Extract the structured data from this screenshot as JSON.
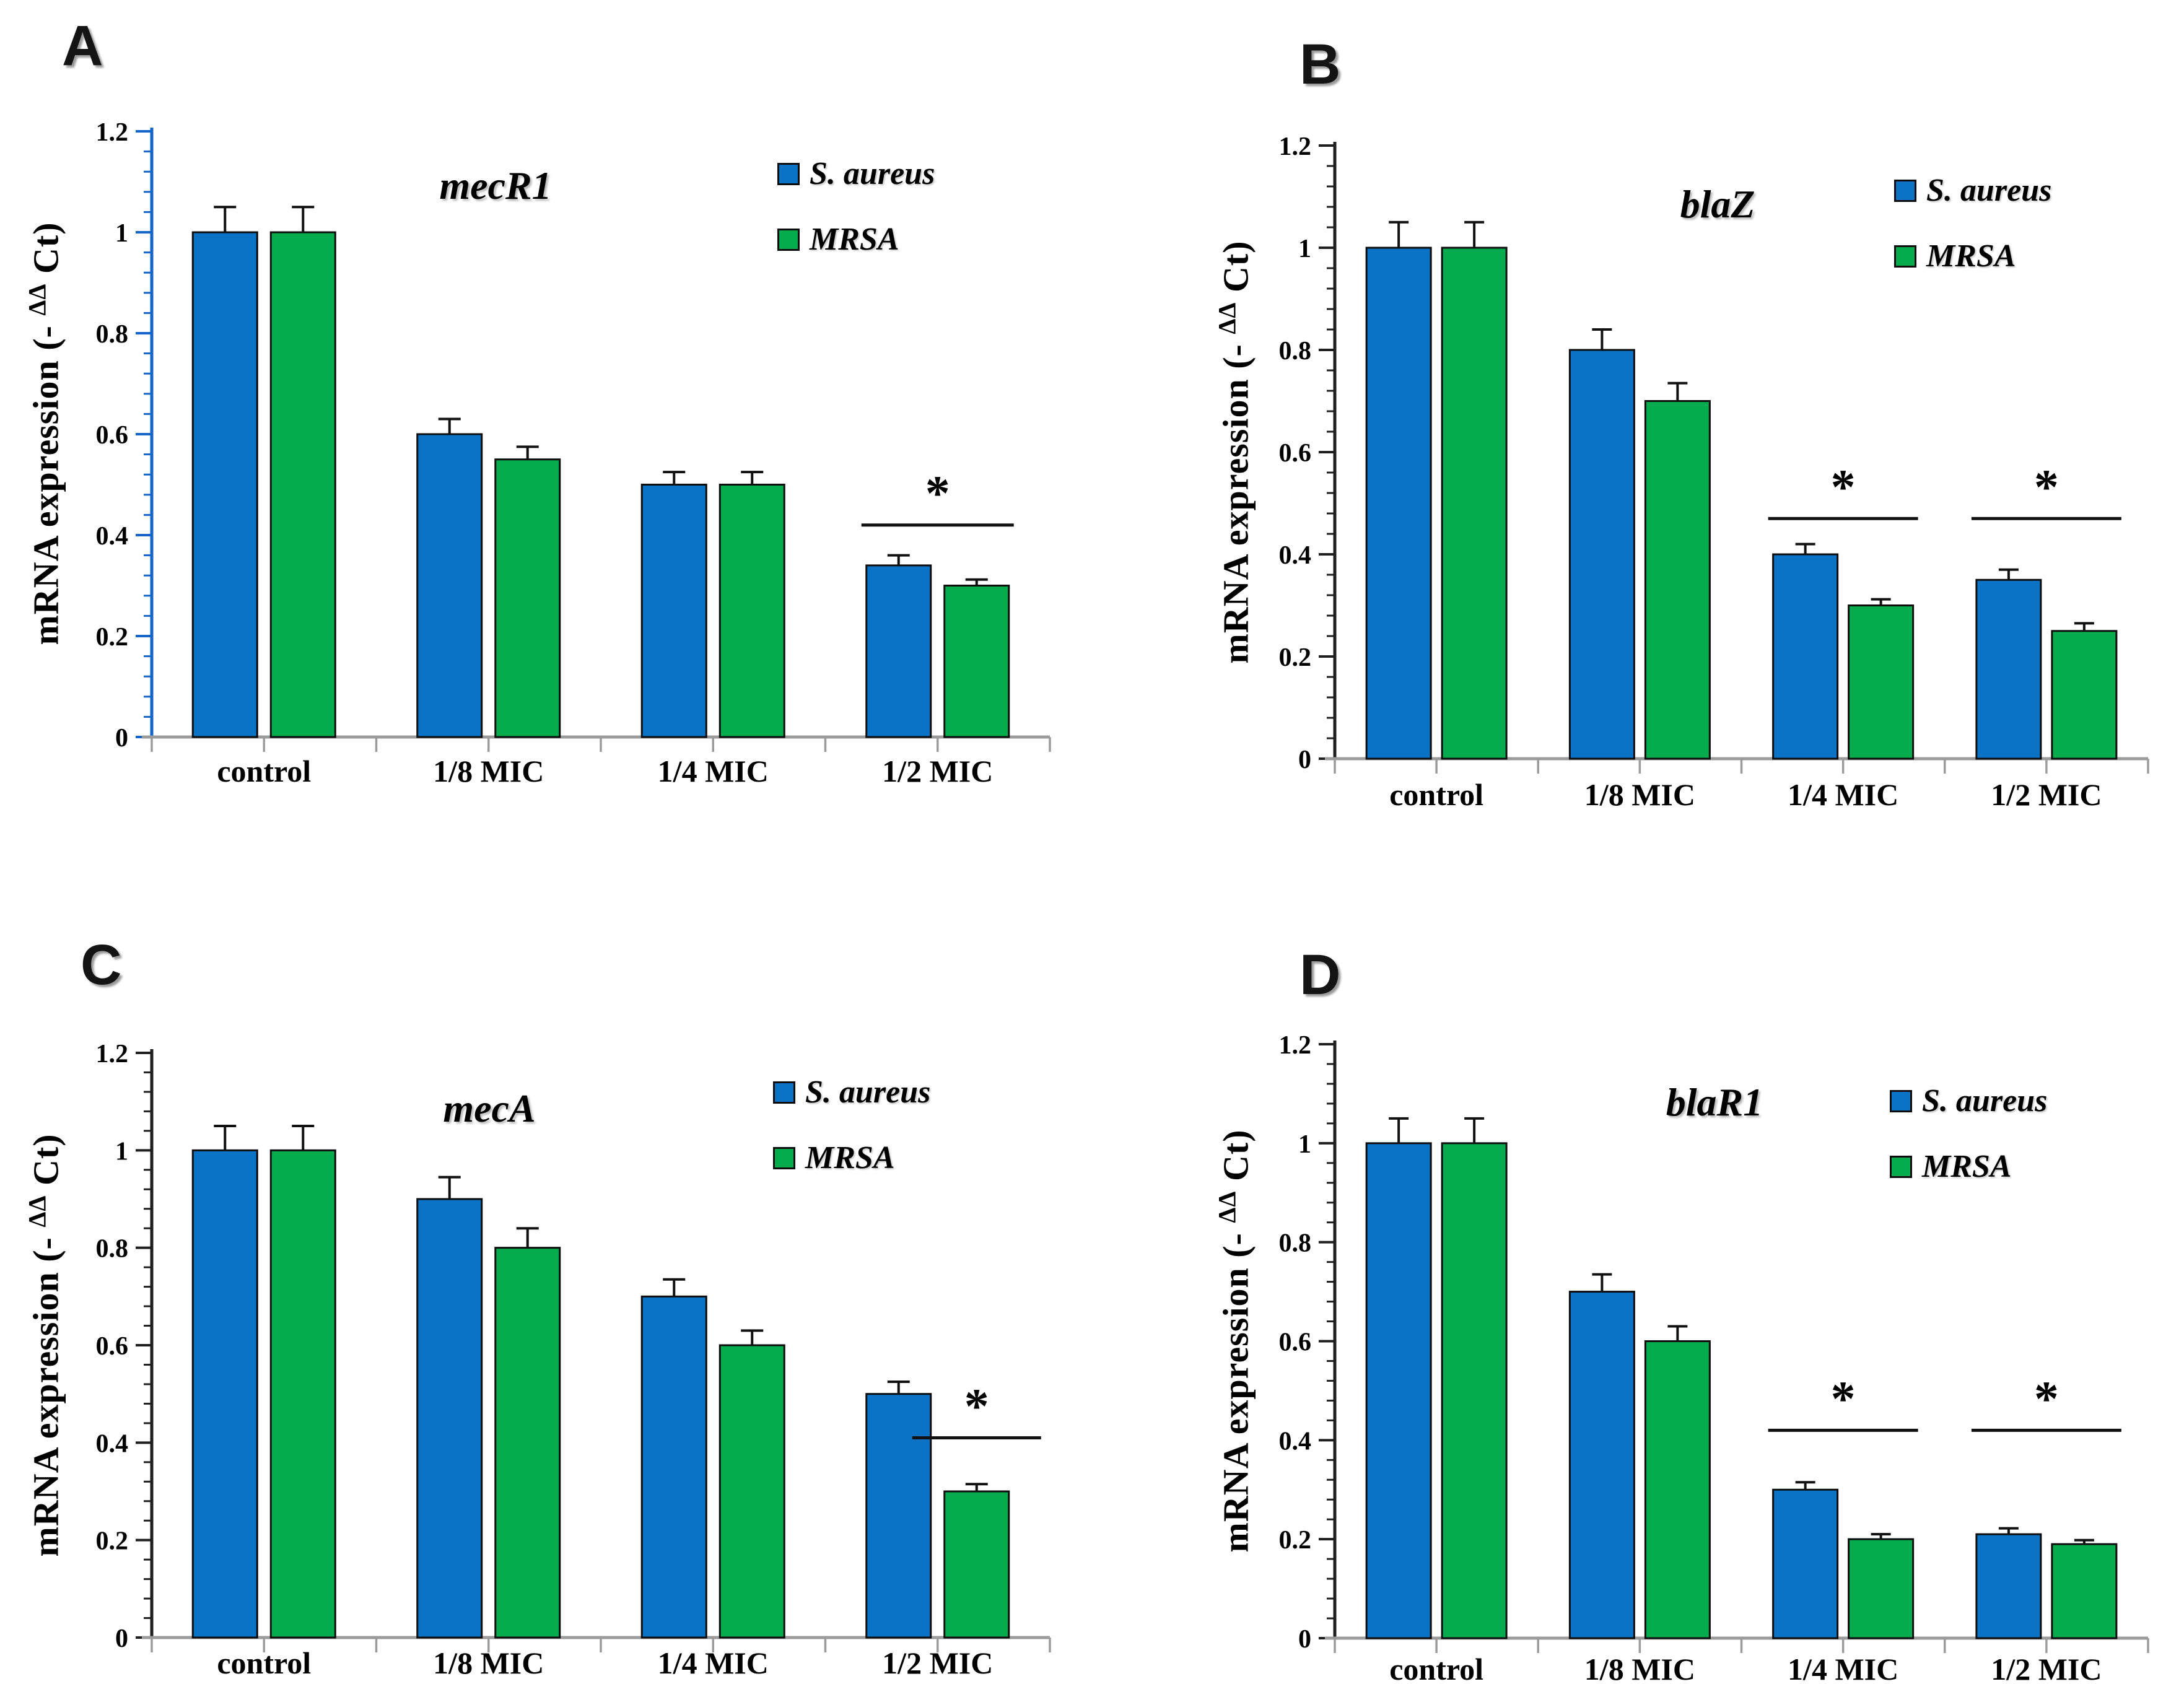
{
  "figure": {
    "background": "#ffffff",
    "colors": {
      "s_aureus_fill": "#0b73c6",
      "mrsa_fill": "#05ab4c",
      "bar_border": "#0d0d0d",
      "error_bar": "#111111",
      "axis_blue": "#1565c8",
      "axis_dark": "#1f1f1f",
      "baseline_gray": "#9b9b9b",
      "sig_line": "#111111"
    },
    "legend": {
      "position": "top-right",
      "items": [
        {
          "label": "S. aureus",
          "series": "s_aureus"
        },
        {
          "label": "MRSA",
          "series": "mrsa"
        }
      ]
    },
    "y_axis": {
      "title_prefix": "mRNA expression (- ",
      "title_sup": "ΔΔ",
      "title_suffix": " Ct)",
      "min": 0,
      "max": 1.2,
      "major_step": 0.2,
      "minor_divisions": 5,
      "tick_labels": [
        "0",
        "0.2",
        "0.4",
        "0.6",
        "0.8",
        "1",
        "1.2"
      ]
    }
  },
  "chart_data": [
    {
      "panel": "A",
      "type": "bar",
      "title": "mecR1",
      "ylabel": "mRNA expression (- ΔΔ Ct)",
      "ylim": [
        0,
        1.2
      ],
      "grid": false,
      "categories": [
        "control",
        "1/8 MIC",
        "1/4 MIC",
        "1/2 MIC"
      ],
      "series": [
        {
          "name": "S. aureus",
          "values": [
            1.0,
            0.6,
            0.5,
            0.34
          ],
          "errors": [
            0.05,
            0.03,
            0.025,
            0.02
          ]
        },
        {
          "name": "MRSA",
          "values": [
            1.0,
            0.55,
            0.5,
            0.3
          ],
          "errors": [
            0.05,
            0.025,
            0.025,
            0.012
          ]
        }
      ],
      "significance": [
        {
          "category": "1/2 MIC",
          "bars": "both",
          "line_y": 0.42,
          "label": "*"
        }
      ]
    },
    {
      "panel": "B",
      "type": "bar",
      "title": "blaZ",
      "ylabel": "mRNA expression (- ΔΔ Ct)",
      "ylim": [
        0,
        1.2
      ],
      "grid": false,
      "categories": [
        "control",
        "1/8 MIC",
        "1/4 MIC",
        "1/2 MIC"
      ],
      "series": [
        {
          "name": "S. aureus",
          "values": [
            1.0,
            0.8,
            0.4,
            0.35
          ],
          "errors": [
            0.05,
            0.04,
            0.02,
            0.02
          ]
        },
        {
          "name": "MRSA",
          "values": [
            1.0,
            0.7,
            0.3,
            0.25
          ],
          "errors": [
            0.05,
            0.035,
            0.012,
            0.015
          ]
        }
      ],
      "significance": [
        {
          "category": "1/4 MIC",
          "bars": "both",
          "line_y": 0.47,
          "label": "*"
        },
        {
          "category": "1/2 MIC",
          "bars": "both",
          "line_y": 0.47,
          "label": "*"
        }
      ]
    },
    {
      "panel": "C",
      "type": "bar",
      "title": "mecA",
      "ylabel": "mRNA expression (- ΔΔ Ct)",
      "ylim": [
        0,
        1.2
      ],
      "grid": false,
      "categories": [
        "control",
        "1/8 MIC",
        "1/4 MIC",
        "1/2 MIC"
      ],
      "series": [
        {
          "name": "S. aureus",
          "values": [
            1.0,
            0.9,
            0.7,
            0.5
          ],
          "errors": [
            0.05,
            0.045,
            0.035,
            0.025
          ]
        },
        {
          "name": "MRSA",
          "values": [
            1.0,
            0.8,
            0.6,
            0.3
          ],
          "errors": [
            0.05,
            0.04,
            0.03,
            0.015
          ]
        }
      ],
      "significance": [
        {
          "category": "1/2 MIC",
          "bars": "mrsa_only",
          "line_y": 0.41,
          "label": "*"
        }
      ]
    },
    {
      "panel": "D",
      "type": "bar",
      "title": "blaR1",
      "ylabel": "mRNA expression (- ΔΔ Ct)",
      "ylim": [
        0,
        1.2
      ],
      "grid": false,
      "categories": [
        "control",
        "1/8 MIC",
        "1/4 MIC",
        "1/2 MIC"
      ],
      "series": [
        {
          "name": "S. aureus",
          "values": [
            1.0,
            0.7,
            0.3,
            0.21
          ],
          "errors": [
            0.05,
            0.035,
            0.015,
            0.012
          ]
        },
        {
          "name": "MRSA",
          "values": [
            1.0,
            0.6,
            0.2,
            0.19
          ],
          "errors": [
            0.05,
            0.03,
            0.01,
            0.008
          ]
        }
      ],
      "significance": [
        {
          "category": "1/4 MIC",
          "bars": "both",
          "line_y": 0.42,
          "label": "*"
        },
        {
          "category": "1/2 MIC",
          "bars": "both",
          "line_y": 0.42,
          "label": "*"
        }
      ]
    }
  ]
}
